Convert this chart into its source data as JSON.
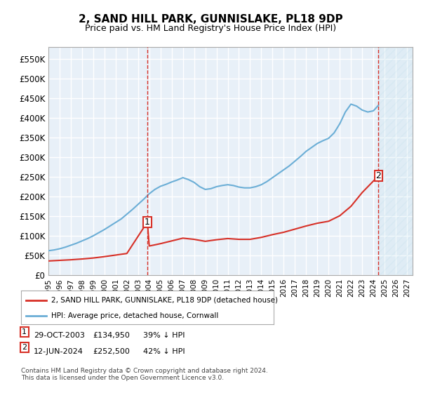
{
  "title": "2, SAND HILL PARK, GUNNISLAKE, PL18 9DP",
  "subtitle": "Price paid vs. HM Land Registry's House Price Index (HPI)",
  "legend_line1": "2, SAND HILL PARK, GUNNISLAKE, PL18 9DP (detached house)",
  "legend_line2": "HPI: Average price, detached house, Cornwall",
  "transaction1_label": "1",
  "transaction1_date": "29-OCT-2003",
  "transaction1_price": "£134,950",
  "transaction1_hpi": "39% ↓ HPI",
  "transaction2_label": "2",
  "transaction2_date": "12-JUN-2024",
  "transaction2_price": "£252,500",
  "transaction2_hpi": "42% ↓ HPI",
  "footnote": "Contains HM Land Registry data © Crown copyright and database right 2024.\nThis data is licensed under the Open Government Licence v3.0.",
  "xlim_start": 1995.0,
  "xlim_end": 2027.5,
  "ylim_min": 0,
  "ylim_max": 580000,
  "yticks": [
    0,
    50000,
    100000,
    150000,
    200000,
    250000,
    300000,
    350000,
    400000,
    450000,
    500000,
    550000
  ],
  "ytick_labels": [
    "£0",
    "£50K",
    "£100K",
    "£150K",
    "£200K",
    "£250K",
    "£300K",
    "£350K",
    "£400K",
    "£450K",
    "£500K",
    "£550K"
  ],
  "xticks": [
    1995,
    1996,
    1997,
    1998,
    1999,
    2000,
    2001,
    2002,
    2003,
    2004,
    2005,
    2006,
    2007,
    2008,
    2009,
    2010,
    2011,
    2012,
    2013,
    2014,
    2015,
    2016,
    2017,
    2018,
    2019,
    2020,
    2021,
    2022,
    2023,
    2024,
    2025,
    2026,
    2027
  ],
  "hpi_color": "#6baed6",
  "price_color": "#d73027",
  "bg_color": "#ddeeff",
  "plot_bg": "#e8f0f8",
  "grid_color": "#ffffff",
  "transaction1_x": 2003.83,
  "transaction2_x": 2024.45,
  "transaction1_y": 134950,
  "transaction2_y": 252500,
  "hpi_x": [
    1995,
    1995.5,
    1996,
    1996.5,
    1997,
    1997.5,
    1998,
    1998.5,
    1999,
    1999.5,
    2000,
    2000.5,
    2001,
    2001.5,
    2002,
    2002.5,
    2003,
    2003.5,
    2004,
    2004.5,
    2005,
    2005.5,
    2006,
    2006.5,
    2007,
    2007.5,
    2008,
    2008.5,
    2009,
    2009.5,
    2010,
    2010.5,
    2011,
    2011.5,
    2012,
    2012.5,
    2013,
    2013.5,
    2014,
    2014.5,
    2015,
    2015.5,
    2016,
    2016.5,
    2017,
    2017.5,
    2018,
    2018.5,
    2019,
    2019.5,
    2020,
    2020.5,
    2021,
    2021.5,
    2022,
    2022.5,
    2023,
    2023.5,
    2024,
    2024.45
  ],
  "hpi_y": [
    62000,
    64000,
    67000,
    71000,
    76000,
    81000,
    87000,
    93000,
    100000,
    108000,
    116000,
    125000,
    134000,
    143000,
    155000,
    167000,
    180000,
    193000,
    207000,
    218000,
    226000,
    231000,
    237000,
    242000,
    248000,
    243000,
    236000,
    225000,
    218000,
    220000,
    225000,
    228000,
    230000,
    228000,
    224000,
    222000,
    222000,
    225000,
    230000,
    238000,
    248000,
    258000,
    268000,
    278000,
    290000,
    302000,
    315000,
    325000,
    335000,
    342000,
    348000,
    362000,
    385000,
    415000,
    435000,
    430000,
    420000,
    415000,
    418000,
    432000
  ],
  "price_x": [
    1995,
    1996,
    1997,
    1998,
    1999,
    2000,
    2001,
    2002,
    2003.83,
    2004,
    2005,
    2006,
    2007,
    2008,
    2009,
    2010,
    2011,
    2012,
    2013,
    2014,
    2015,
    2016,
    2017,
    2018,
    2019,
    2020,
    2021,
    2022,
    2023,
    2024.45
  ],
  "price_y": [
    36000,
    37500,
    39000,
    41000,
    43500,
    47000,
    51000,
    55000,
    134950,
    74000,
    80000,
    87000,
    94000,
    91000,
    86000,
    90000,
    93000,
    91000,
    91000,
    96000,
    103000,
    109000,
    117000,
    125000,
    132000,
    137000,
    151000,
    175000,
    210000,
    252500
  ]
}
